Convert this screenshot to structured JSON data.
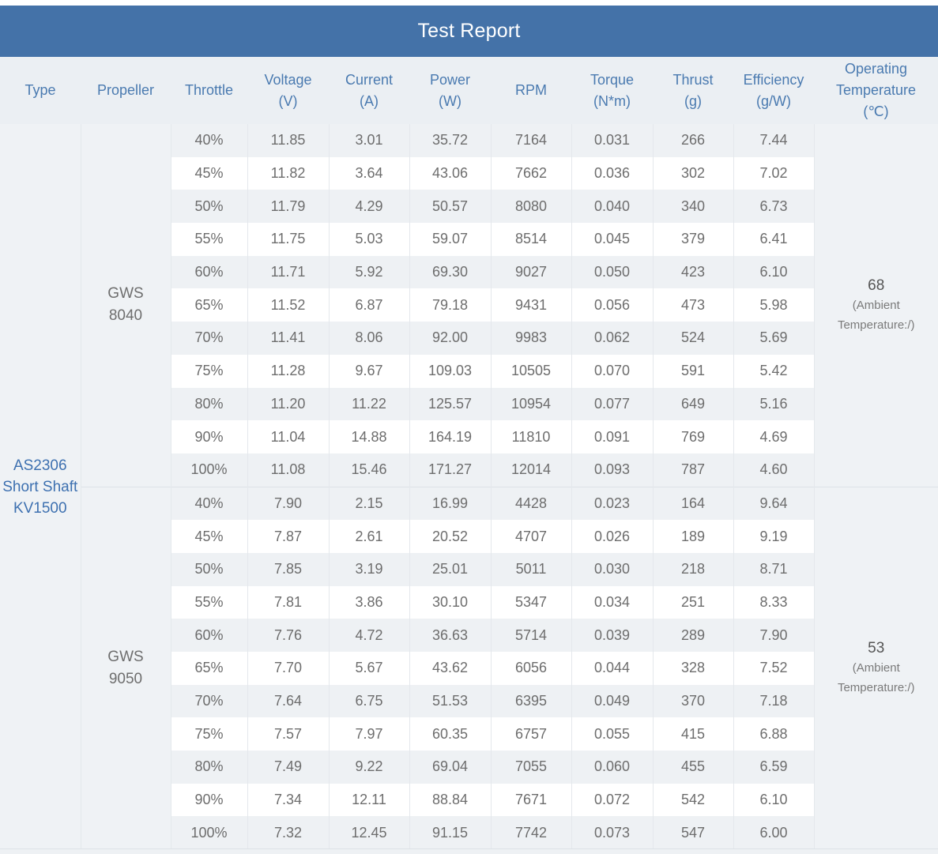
{
  "title": "Test Report",
  "headers": [
    "Type",
    "Propeller",
    "Throttle",
    "Voltage\n(V)",
    "Current\n(A)",
    "Power\n(W)",
    "RPM",
    "Torque\n(N*m)",
    "Thrust\n(g)",
    "Efficiency\n(g/W)",
    "Operating\nTemperature\n(℃)"
  ],
  "type_label": "AS2306\nShort Shaft\nKV1500",
  "groups": [
    {
      "propeller": "GWS\n8040",
      "temperature": "68",
      "temperature_note": "(Ambient\nTemperature:/)",
      "rows": [
        [
          "40%",
          "11.85",
          "3.01",
          "35.72",
          "7164",
          "0.031",
          "266",
          "7.44"
        ],
        [
          "45%",
          "11.82",
          "3.64",
          "43.06",
          "7662",
          "0.036",
          "302",
          "7.02"
        ],
        [
          "50%",
          "11.79",
          "4.29",
          "50.57",
          "8080",
          "0.040",
          "340",
          "6.73"
        ],
        [
          "55%",
          "11.75",
          "5.03",
          "59.07",
          "8514",
          "0.045",
          "379",
          "6.41"
        ],
        [
          "60%",
          "11.71",
          "5.92",
          "69.30",
          "9027",
          "0.050",
          "423",
          "6.10"
        ],
        [
          "65%",
          "11.52",
          "6.87",
          "79.18",
          "9431",
          "0.056",
          "473",
          "5.98"
        ],
        [
          "70%",
          "11.41",
          "8.06",
          "92.00",
          "9983",
          "0.062",
          "524",
          "5.69"
        ],
        [
          "75%",
          "11.28",
          "9.67",
          "109.03",
          "10505",
          "0.070",
          "591",
          "5.42"
        ],
        [
          "80%",
          "11.20",
          "11.22",
          "125.57",
          "10954",
          "0.077",
          "649",
          "5.16"
        ],
        [
          "90%",
          "11.04",
          "14.88",
          "164.19",
          "11810",
          "0.091",
          "769",
          "4.69"
        ],
        [
          "100%",
          "11.08",
          "15.46",
          "171.27",
          "12014",
          "0.093",
          "787",
          "4.60"
        ]
      ]
    },
    {
      "propeller": "GWS\n9050",
      "temperature": "53",
      "temperature_note": "(Ambient\nTemperature:/)",
      "rows": [
        [
          "40%",
          "7.90",
          "2.15",
          "16.99",
          "4428",
          "0.023",
          "164",
          "9.64"
        ],
        [
          "45%",
          "7.87",
          "2.61",
          "20.52",
          "4707",
          "0.026",
          "189",
          "9.19"
        ],
        [
          "50%",
          "7.85",
          "3.19",
          "25.01",
          "5011",
          "0.030",
          "218",
          "8.71"
        ],
        [
          "55%",
          "7.81",
          "3.86",
          "30.10",
          "5347",
          "0.034",
          "251",
          "8.33"
        ],
        [
          "60%",
          "7.76",
          "4.72",
          "36.63",
          "5714",
          "0.039",
          "289",
          "7.90"
        ],
        [
          "65%",
          "7.70",
          "5.67",
          "43.62",
          "6056",
          "0.044",
          "328",
          "7.52"
        ],
        [
          "70%",
          "7.64",
          "6.75",
          "51.53",
          "6395",
          "0.049",
          "370",
          "7.18"
        ],
        [
          "75%",
          "7.57",
          "7.97",
          "60.35",
          "6757",
          "0.055",
          "415",
          "6.88"
        ],
        [
          "80%",
          "7.49",
          "9.22",
          "69.04",
          "7055",
          "0.060",
          "455",
          "6.59"
        ],
        [
          "90%",
          "7.34",
          "12.11",
          "88.84",
          "7671",
          "0.072",
          "542",
          "6.10"
        ],
        [
          "100%",
          "7.32",
          "12.45",
          "91.15",
          "7742",
          "0.073",
          "547",
          "6.00"
        ]
      ]
    }
  ]
}
